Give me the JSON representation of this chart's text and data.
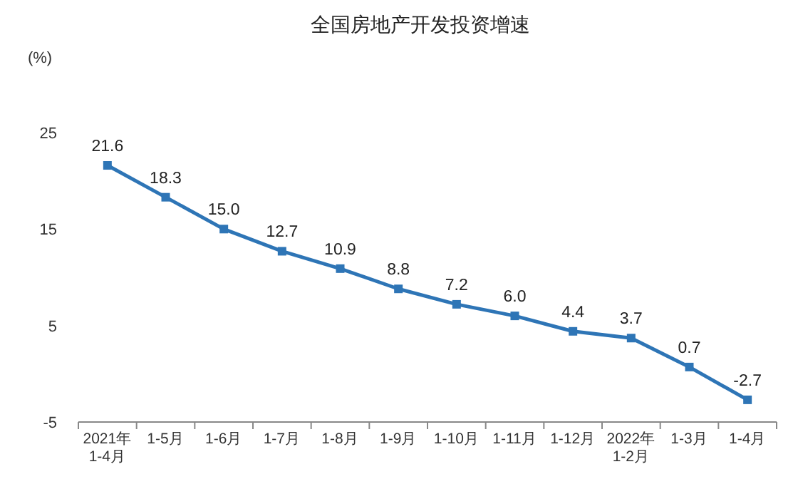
{
  "chart_data": {
    "type": "line",
    "title": "全国房地产开发投资增速",
    "ylabel": "(%)",
    "categories": [
      "2021年\n1-4月",
      "1-5月",
      "1-6月",
      "1-7月",
      "1-8月",
      "1-9月",
      "1-10月",
      "1-11月",
      "1-12月",
      "2022年\n1-2月",
      "1-3月",
      "1-4月"
    ],
    "series": [
      {
        "color": "#2e75b6",
        "values": [
          21.6,
          18.3,
          15.0,
          12.7,
          10.9,
          8.8,
          7.2,
          6.0,
          4.4,
          3.7,
          0.7,
          -2.7
        ]
      }
    ],
    "value_labels": [
      "21.6",
      "18.3",
      "15.0",
      "12.7",
      "10.9",
      "8.8",
      "7.2",
      "6.0",
      "4.4",
      "3.7",
      "0.7",
      "-2.7"
    ],
    "ylim": [
      -5,
      25
    ],
    "yticks": [
      -5,
      5,
      15,
      25
    ],
    "marker": "square",
    "line_style": "solid",
    "grid": false
  }
}
